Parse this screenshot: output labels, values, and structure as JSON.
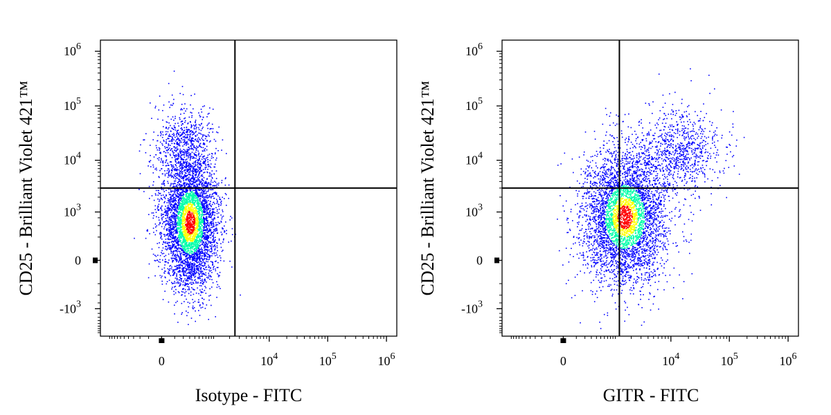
{
  "chart_data": [
    {
      "type": "scatter",
      "subtype": "flow-cytometry-density",
      "xlabel": "Isotype - FITC",
      "ylabel": "CD25 - Brilliant Violet 421™",
      "x_scale": "biexponential",
      "y_scale": "biexponential",
      "x_ticks": [
        {
          "value": 0,
          "label": "0",
          "exp": ""
        },
        {
          "value": 10000,
          "label": "10",
          "exp": "4"
        },
        {
          "value": 100000,
          "label": "10",
          "exp": "5"
        },
        {
          "value": 1000000,
          "label": "10",
          "exp": "6"
        }
      ],
      "y_ticks": [
        {
          "value": 1000000,
          "label": "10",
          "exp": "6"
        },
        {
          "value": 100000,
          "label": "10",
          "exp": "5"
        },
        {
          "value": 10000,
          "label": "10",
          "exp": "4"
        },
        {
          "value": 1000,
          "label": "10",
          "exp": "3"
        },
        {
          "value": 0,
          "label": "0",
          "exp": ""
        },
        {
          "value": -1000,
          "label": "-10",
          "exp": "3"
        }
      ],
      "gates": {
        "x": 2500,
        "y": 3000
      },
      "populations": [
        {
          "x_center": 300,
          "y_center": 600,
          "x_spread": "narrow",
          "y_spread": "wide",
          "weight": 0.88
        },
        {
          "x_center": 200,
          "y_center": 20000,
          "x_spread": "narrow",
          "y_spread": "medium",
          "weight": 0.12
        }
      ],
      "grid": false,
      "legend": "none"
    },
    {
      "type": "scatter",
      "subtype": "flow-cytometry-density",
      "xlabel": "GITR - FITC",
      "ylabel": "CD25 - Brilliant Violet 421™",
      "x_scale": "biexponential",
      "y_scale": "biexponential",
      "x_ticks": [
        {
          "value": 0,
          "label": "0",
          "exp": ""
        },
        {
          "value": 10000,
          "label": "10",
          "exp": "4"
        },
        {
          "value": 100000,
          "label": "10",
          "exp": "5"
        },
        {
          "value": 1000000,
          "label": "10",
          "exp": "6"
        }
      ],
      "y_ticks": [
        {
          "value": 1000000,
          "label": "10",
          "exp": "6"
        },
        {
          "value": 100000,
          "label": "10",
          "exp": "5"
        },
        {
          "value": 10000,
          "label": "10",
          "exp": "4"
        },
        {
          "value": 1000,
          "label": "10",
          "exp": "3"
        },
        {
          "value": 0,
          "label": "0",
          "exp": ""
        },
        {
          "value": -1000,
          "label": "-10",
          "exp": "3"
        }
      ],
      "gates": {
        "x": 1200,
        "y": 3000
      },
      "populations": [
        {
          "x_center": 1500,
          "y_center": 800,
          "x_spread": "medium",
          "y_spread": "wide",
          "weight": 0.84
        },
        {
          "x_center": 15000,
          "y_center": 15000,
          "x_spread": "medium",
          "y_spread": "medium",
          "weight": 0.16
        }
      ],
      "grid": false,
      "legend": "none"
    }
  ],
  "colors": {
    "density_low": "#0000ff",
    "density_mid": "#00ffaa",
    "density_high": "#ffff00",
    "density_peak": "#ff0000",
    "axis": "#000000"
  }
}
